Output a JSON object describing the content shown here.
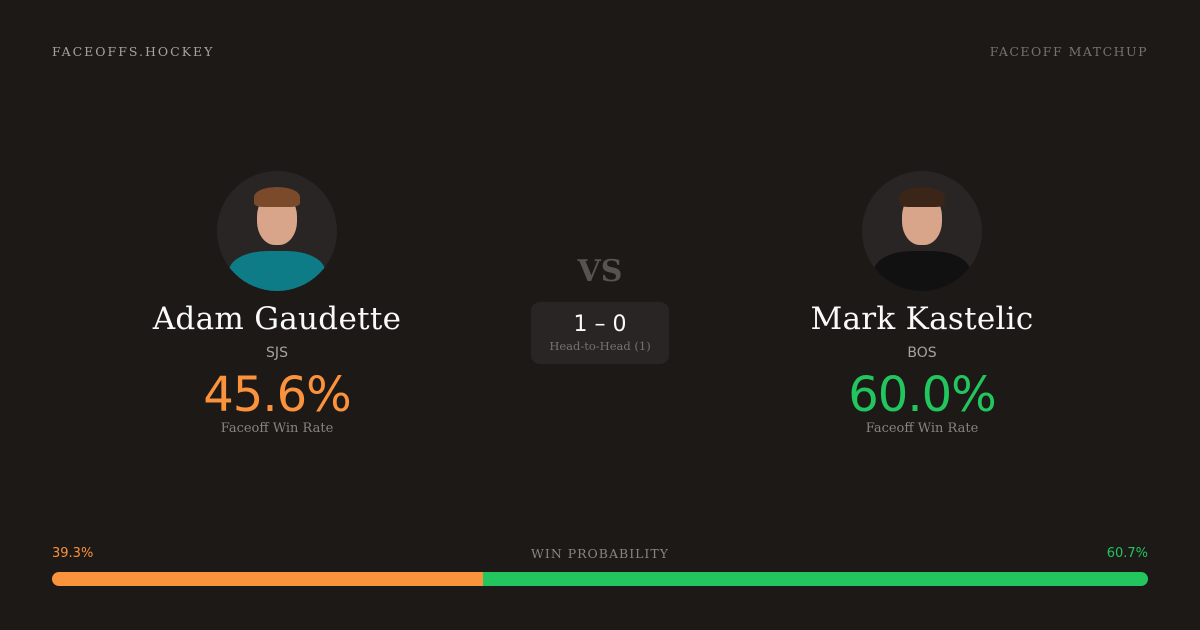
{
  "header": {
    "brand": "FACEOFFS.HOCKEY",
    "kicker": "FACEOFF MATCHUP"
  },
  "colors": {
    "left": "#fb923c",
    "right": "#22c55e"
  },
  "players": [
    {
      "name": "Adam Gaudette",
      "team": "SJS",
      "win_rate": "45.6%",
      "win_rate_label": "Faceoff Win Rate",
      "jersey_color": "#0e7c86",
      "hair_color": "#7a4a2a"
    },
    {
      "name": "Mark Kastelic",
      "team": "BOS",
      "win_rate": "60.0%",
      "win_rate_label": "Faceoff Win Rate",
      "jersey_color": "#111111",
      "hair_color": "#3b2418"
    }
  ],
  "center": {
    "vs": "VS",
    "score": "1 – 0",
    "head_to_head": "Head-to-Head (1)"
  },
  "win_probability": {
    "label": "WIN PROBABILITY",
    "left": "39.3%",
    "right": "60.7%",
    "left_value": 39.3,
    "right_value": 60.7
  }
}
